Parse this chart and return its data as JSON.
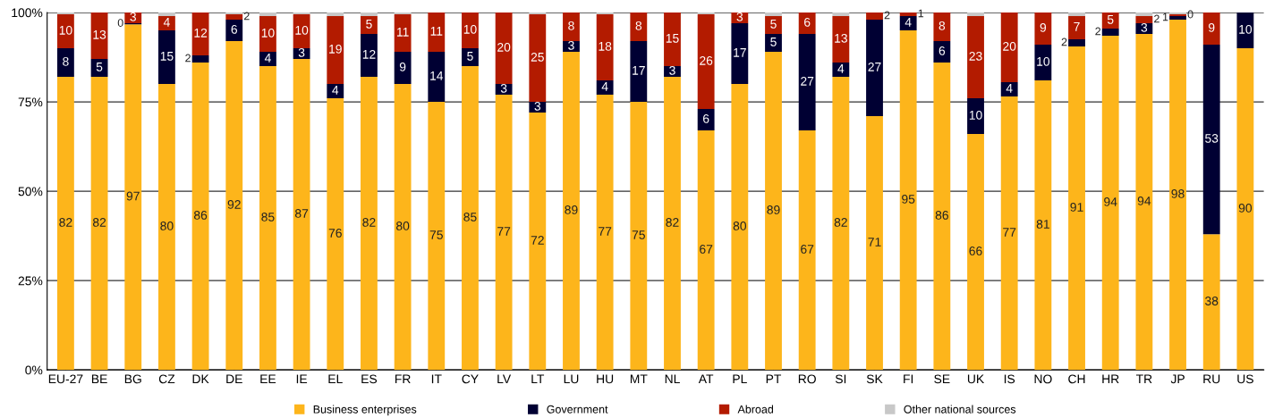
{
  "chart_data": {
    "type": "bar",
    "stacked": true,
    "categories": [
      "EU-27",
      "BE",
      "BG",
      "CZ",
      "DK",
      "DE",
      "EE",
      "IE",
      "EL",
      "ES",
      "FR",
      "IT",
      "CY",
      "LV",
      "LT",
      "LU",
      "HU",
      "MT",
      "NL",
      "AT",
      "PL",
      "PT",
      "RO",
      "SI",
      "SK",
      "FI",
      "SE",
      "UK",
      "IS",
      "NO",
      "CH",
      "HR",
      "TR",
      "JP",
      "RU",
      "US"
    ],
    "series": [
      {
        "name": "Business enterprises",
        "color": "#fdb51b",
        "values": [
          82,
          82,
          96.7,
          80,
          86,
          92,
          85,
          87,
          76,
          82,
          80,
          75,
          85,
          77,
          72,
          89,
          77,
          75,
          82,
          67,
          80,
          89,
          67,
          82,
          71,
          95,
          86,
          66,
          76.5,
          81,
          90.5,
          93.5,
          94,
          98,
          38,
          90
        ],
        "value_labels": [
          "82",
          "82",
          "97",
          "80",
          "86",
          "92",
          "85",
          "87",
          "76",
          "82",
          "80",
          "75",
          "85",
          "77",
          "72",
          "89",
          "77",
          "75",
          "82",
          "67",
          "80",
          "89",
          "67",
          "82",
          "71",
          "95",
          "86",
          "66",
          "77",
          "81",
          "91",
          "94",
          "94",
          "98",
          "38",
          "90"
        ]
      },
      {
        "name": "Government",
        "color": "#000033",
        "values": [
          8,
          5,
          0.3,
          15,
          2,
          6,
          4,
          3,
          4,
          12,
          9,
          14,
          5,
          3,
          3,
          3,
          4,
          17,
          3,
          6,
          17,
          5,
          27,
          4,
          27,
          4,
          6,
          10,
          4,
          10,
          2,
          2,
          3,
          1,
          53,
          10
        ],
        "value_labels": [
          "8",
          "5",
          "0",
          "15",
          "2",
          "6",
          "4",
          "3",
          "4",
          "12",
          "9",
          "14",
          "5",
          "3",
          "3",
          "3",
          "4",
          "17",
          "3",
          "6",
          "17",
          "5",
          "27",
          "4",
          "27",
          "4",
          "6",
          "10",
          "4",
          "10",
          "2",
          "2",
          "3",
          "1",
          "53",
          "10"
        ]
      },
      {
        "name": "Abroad",
        "color": "#b31b00",
        "values": [
          9.5,
          13,
          3,
          4,
          12,
          1.5,
          10,
          9.5,
          19,
          5,
          10.5,
          11,
          10,
          20,
          24.5,
          8,
          18.5,
          8,
          15,
          26.5,
          3,
          5,
          6,
          13,
          2,
          1,
          8,
          23,
          19.5,
          9,
          6.5,
          4.5,
          2,
          0.5,
          9,
          0
        ],
        "value_labels": [
          "10",
          "13",
          "3",
          "4",
          "12",
          "2",
          "10",
          "10",
          "19",
          "5",
          "11",
          "11",
          "10",
          "20",
          "25",
          "8",
          "18",
          "8",
          "15",
          "26",
          "3",
          "5",
          "6",
          "13",
          "2",
          "1",
          "8",
          "23",
          "20",
          "9",
          "7",
          "5",
          "2",
          "0",
          "9",
          null
        ]
      },
      {
        "name": "Other national sources",
        "color": "#c8c8c8",
        "values": [
          0.5,
          0,
          0,
          1,
          0,
          0.5,
          1,
          0.5,
          1,
          1,
          0.5,
          0,
          0,
          0,
          0.5,
          0,
          0.5,
          0,
          0,
          0.5,
          0,
          1,
          0,
          1,
          0,
          0,
          0,
          1,
          0,
          0,
          1,
          0,
          1,
          0.5,
          0,
          0
        ]
      }
    ],
    "ylim": [
      0,
      100
    ],
    "yticks": [
      {
        "value": 0,
        "label": "0%"
      },
      {
        "value": 25,
        "label": "25%"
      },
      {
        "value": 50,
        "label": "50%"
      },
      {
        "value": 75,
        "label": "75%"
      },
      {
        "value": 100,
        "label": "100%"
      }
    ],
    "grid": "y",
    "legend": "bottom"
  }
}
